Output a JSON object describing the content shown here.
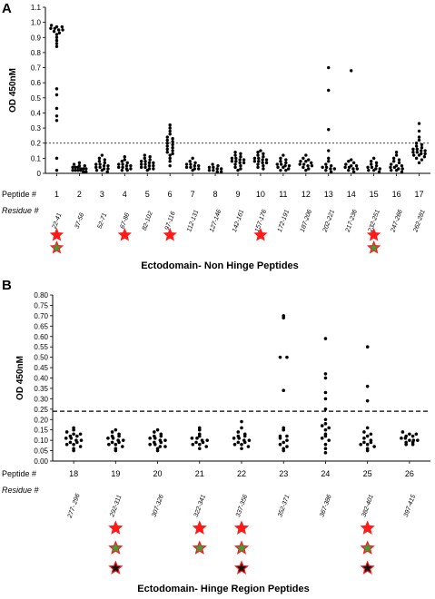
{
  "panel_a_label": "A",
  "panel_b_label": "B",
  "colors": {
    "red_star": "#ff1a1a",
    "green_star": "#3aa03a",
    "black_star": "#111111",
    "star_outline": "#ff1a1a"
  },
  "chart_data": [
    {
      "type": "scatter",
      "panel": "A",
      "ylabel": "OD 450nM",
      "xlabel": "Ectodomain- Non Hinge Peptides",
      "row_label_peptide": "Peptide #",
      "row_label_residue": "Residue #",
      "ylim": [
        0,
        1.1
      ],
      "yticks": [
        "0",
        "0.1",
        "0.2",
        "0.3",
        "0.4",
        "0.5",
        "0.6",
        "0.7",
        "0.8",
        "0.9",
        "1.0",
        "1.1"
      ],
      "cutoff": 0.2,
      "peptides": [
        "1",
        "2",
        "3",
        "4",
        "5",
        "6",
        "7",
        "8",
        "9",
        "10",
        "11",
        "12",
        "13",
        "14",
        "15",
        "16",
        "17"
      ],
      "residues": [
        "22-41",
        "37-56",
        "52-71",
        "67-86",
        "82-102",
        "97-116",
        "112-131",
        "127-146",
        "142-161",
        "157-176",
        "172-191",
        "187-206",
        "202-221",
        "217-236",
        "232-251",
        "247-266",
        "262-281"
      ],
      "series": [
        {
          "peptide": "1",
          "values": [
            0.98,
            0.97,
            0.97,
            0.96,
            0.96,
            0.95,
            0.95,
            0.94,
            0.93,
            0.92,
            0.9,
            0.88,
            0.86,
            0.84,
            0.56,
            0.52,
            0.43,
            0.38,
            0.35,
            0.1,
            0.02
          ]
        },
        {
          "peptide": "2",
          "values": [
            0.07,
            0.06,
            0.05,
            0.05,
            0.04,
            0.04,
            0.04,
            0.03,
            0.03,
            0.03,
            0.02,
            0.02,
            0.02,
            0.02,
            0.01,
            0.01
          ]
        },
        {
          "peptide": "3",
          "values": [
            0.12,
            0.1,
            0.09,
            0.08,
            0.07,
            0.06,
            0.06,
            0.05,
            0.05,
            0.04,
            0.04,
            0.03,
            0.03,
            0.02,
            0.02,
            0.01
          ]
        },
        {
          "peptide": "4",
          "values": [
            0.11,
            0.09,
            0.08,
            0.07,
            0.06,
            0.06,
            0.05,
            0.05,
            0.04,
            0.04,
            0.03,
            0.03,
            0.02,
            0.02
          ]
        },
        {
          "peptide": "5",
          "values": [
            0.12,
            0.11,
            0.1,
            0.09,
            0.08,
            0.08,
            0.07,
            0.07,
            0.06,
            0.06,
            0.05,
            0.05,
            0.04,
            0.04,
            0.03,
            0.03,
            0.02
          ]
        },
        {
          "peptide": "6",
          "values": [
            0.32,
            0.3,
            0.28,
            0.26,
            0.24,
            0.23,
            0.22,
            0.21,
            0.2,
            0.19,
            0.18,
            0.17,
            0.16,
            0.15,
            0.14,
            0.13,
            0.12,
            0.1,
            0.08,
            0.05
          ]
        },
        {
          "peptide": "7",
          "values": [
            0.1,
            0.08,
            0.07,
            0.06,
            0.06,
            0.05,
            0.05,
            0.04,
            0.04,
            0.03,
            0.03,
            0.02
          ]
        },
        {
          "peptide": "8",
          "values": [
            0.06,
            0.05,
            0.04,
            0.04,
            0.03,
            0.03,
            0.02,
            0.02,
            0.01,
            0.01
          ]
        },
        {
          "peptide": "9",
          "values": [
            0.14,
            0.13,
            0.12,
            0.11,
            0.1,
            0.1,
            0.09,
            0.09,
            0.08,
            0.08,
            0.07,
            0.07,
            0.06,
            0.05,
            0.04,
            0.03,
            0.02
          ]
        },
        {
          "peptide": "10",
          "values": [
            0.15,
            0.14,
            0.13,
            0.12,
            0.11,
            0.1,
            0.1,
            0.09,
            0.09,
            0.08,
            0.08,
            0.07,
            0.07,
            0.06,
            0.05,
            0.04,
            0.03
          ]
        },
        {
          "peptide": "11",
          "values": [
            0.12,
            0.1,
            0.09,
            0.08,
            0.07,
            0.06,
            0.06,
            0.05,
            0.05,
            0.04,
            0.04,
            0.03,
            0.02,
            0.02
          ]
        },
        {
          "peptide": "12",
          "values": [
            0.12,
            0.1,
            0.09,
            0.08,
            0.08,
            0.07,
            0.06,
            0.06,
            0.05,
            0.05,
            0.04,
            0.03,
            0.02
          ]
        },
        {
          "peptide": "13",
          "values": [
            0.7,
            0.55,
            0.29,
            0.15,
            0.1,
            0.08,
            0.06,
            0.05,
            0.04,
            0.04,
            0.03,
            0.03,
            0.02,
            0.01
          ]
        },
        {
          "peptide": "14",
          "values": [
            0.68,
            0.09,
            0.08,
            0.07,
            0.06,
            0.05,
            0.05,
            0.04,
            0.04,
            0.03,
            0.03,
            0.02,
            0.01
          ]
        },
        {
          "peptide": "15",
          "values": [
            0.1,
            0.08,
            0.07,
            0.06,
            0.05,
            0.04,
            0.04,
            0.03,
            0.03,
            0.02,
            0.02,
            0.01
          ]
        },
        {
          "peptide": "16",
          "values": [
            0.14,
            0.12,
            0.1,
            0.09,
            0.08,
            0.07,
            0.06,
            0.05,
            0.05,
            0.04,
            0.04,
            0.03,
            0.03,
            0.02,
            0.02,
            0.01
          ]
        },
        {
          "peptide": "17",
          "values": [
            0.33,
            0.28,
            0.24,
            0.22,
            0.2,
            0.19,
            0.18,
            0.17,
            0.16,
            0.16,
            0.15,
            0.15,
            0.14,
            0.14,
            0.13,
            0.13,
            0.12,
            0.12,
            0.11,
            0.1,
            0.09,
            0.07
          ]
        }
      ],
      "stars": [
        {
          "peptide": "1",
          "colors": [
            "red",
            "green"
          ]
        },
        {
          "peptide": "4",
          "colors": [
            "red"
          ]
        },
        {
          "peptide": "6",
          "colors": [
            "red"
          ]
        },
        {
          "peptide": "10",
          "colors": [
            "red"
          ]
        },
        {
          "peptide": "15",
          "colors": [
            "red",
            "green"
          ]
        }
      ]
    },
    {
      "type": "scatter",
      "panel": "B",
      "ylabel": "OD 450nM",
      "xlabel": "Ectodomain- Hinge Region Peptides",
      "row_label_peptide": "Peptide #",
      "row_label_residue": "Residue #",
      "ylim": [
        0,
        0.8
      ],
      "yticks": [
        "0.00",
        "0.05",
        "0.10",
        "0.15",
        "0.20",
        "0.25",
        "0.30",
        "0.35",
        "0.40",
        "0.45",
        "0.50",
        "0.55",
        "0.60",
        "0.65",
        "0.70",
        "0.75",
        "0.80"
      ],
      "cutoff": 0.24,
      "peptides": [
        "18",
        "19",
        "20",
        "21",
        "22",
        "23",
        "24",
        "25",
        "26"
      ],
      "residues": [
        "277- 296",
        "292-311",
        "307-326",
        "322-341",
        "337-356",
        "352-371",
        "367-386",
        "382-401",
        "397-415"
      ],
      "series": [
        {
          "peptide": "18",
          "values": [
            0.16,
            0.15,
            0.14,
            0.13,
            0.13,
            0.12,
            0.12,
            0.11,
            0.11,
            0.1,
            0.1,
            0.09,
            0.09,
            0.08,
            0.08,
            0.07,
            0.06,
            0.05
          ]
        },
        {
          "peptide": "19",
          "values": [
            0.15,
            0.14,
            0.13,
            0.12,
            0.12,
            0.11,
            0.11,
            0.1,
            0.1,
            0.09,
            0.09,
            0.08,
            0.08,
            0.07,
            0.06,
            0.05
          ]
        },
        {
          "peptide": "20",
          "values": [
            0.15,
            0.14,
            0.13,
            0.12,
            0.12,
            0.11,
            0.11,
            0.1,
            0.1,
            0.09,
            0.09,
            0.08,
            0.08,
            0.07,
            0.07,
            0.06,
            0.05
          ]
        },
        {
          "peptide": "21",
          "values": [
            0.16,
            0.15,
            0.13,
            0.12,
            0.11,
            0.11,
            0.1,
            0.1,
            0.09,
            0.09,
            0.08,
            0.08,
            0.07,
            0.06
          ]
        },
        {
          "peptide": "22",
          "values": [
            0.19,
            0.16,
            0.14,
            0.13,
            0.12,
            0.12,
            0.11,
            0.11,
            0.1,
            0.1,
            0.09,
            0.09,
            0.08,
            0.08,
            0.07,
            0.06
          ]
        },
        {
          "peptide": "23",
          "values": [
            0.7,
            0.69,
            0.5,
            0.5,
            0.34,
            0.16,
            0.15,
            0.12,
            0.12,
            0.11,
            0.1,
            0.09,
            0.08,
            0.07,
            0.06,
            0.05
          ]
        },
        {
          "peptide": "24",
          "values": [
            0.59,
            0.42,
            0.4,
            0.33,
            0.3,
            0.25,
            0.2,
            0.18,
            0.17,
            0.16,
            0.15,
            0.13,
            0.12,
            0.11,
            0.1,
            0.08,
            0.06,
            0.04
          ]
        },
        {
          "peptide": "25",
          "values": [
            0.55,
            0.36,
            0.29,
            0.16,
            0.14,
            0.13,
            0.12,
            0.11,
            0.1,
            0.09,
            0.09,
            0.08,
            0.08,
            0.07,
            0.06,
            0.05
          ]
        },
        {
          "peptide": "26",
          "values": [
            0.14,
            0.13,
            0.13,
            0.12,
            0.12,
            0.11,
            0.11,
            0.1,
            0.1,
            0.1,
            0.09,
            0.09,
            0.08,
            0.08
          ]
        }
      ],
      "stars": [
        {
          "peptide": "19",
          "colors": [
            "red",
            "green",
            "black"
          ]
        },
        {
          "peptide": "21",
          "colors": [
            "red",
            "green"
          ]
        },
        {
          "peptide": "22",
          "colors": [
            "red",
            "green",
            "black"
          ]
        },
        {
          "peptide": "25",
          "colors": [
            "red",
            "green",
            "black"
          ]
        }
      ]
    }
  ]
}
